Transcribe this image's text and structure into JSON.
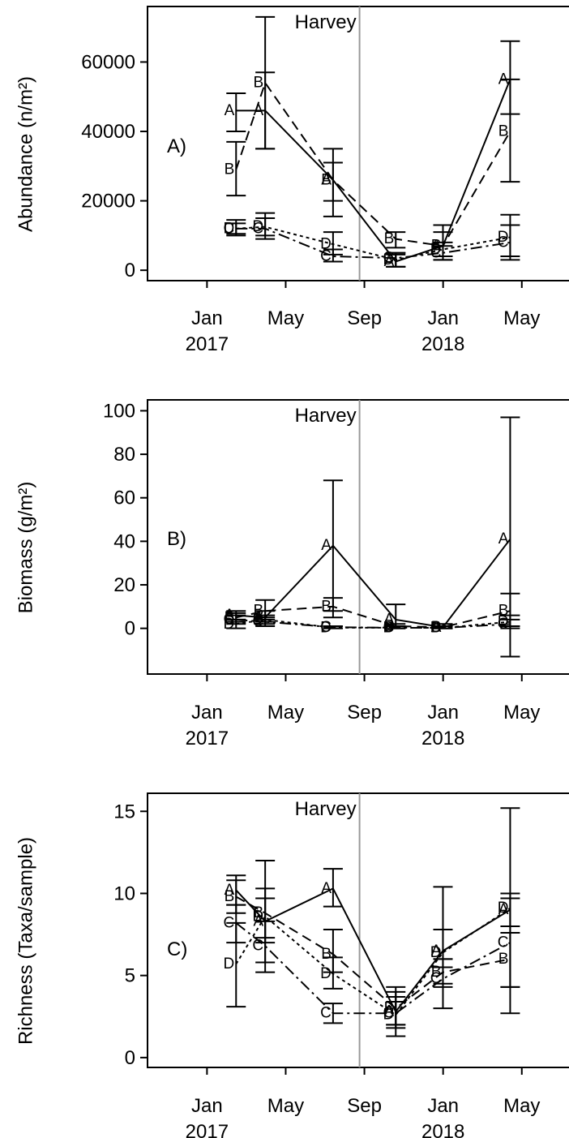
{
  "event_label": "Harvey",
  "x_ticks": [
    {
      "t": 0,
      "line1": "Jan",
      "line2": "2017"
    },
    {
      "t": 4,
      "line1": "May",
      "line2": ""
    },
    {
      "t": 8,
      "line1": "Sep",
      "line2": ""
    },
    {
      "t": 12,
      "line1": "Jan",
      "line2": "2018"
    },
    {
      "t": 16,
      "line1": "May",
      "line2": ""
    }
  ],
  "chart_data": [
    {
      "type": "line",
      "panel_label": "A)",
      "ylabel": "Abundance (n/m²)",
      "xlim": [
        "2016-10-01",
        "2018-07-15"
      ],
      "ylim": [
        -3000,
        76000
      ],
      "yticks": [
        0,
        20000,
        40000,
        60000
      ],
      "event_date": "2017-08-25",
      "series": [
        {
          "name": "A",
          "dash": "",
          "x": [
            "2017-02-15",
            "2017-04-01",
            "2017-07-15",
            "2017-10-20",
            "2018-01-01",
            "2018-04-15"
          ],
          "y": [
            46000,
            46000,
            26000,
            2500,
            7000,
            55000
          ],
          "lo": [
            40000,
            35000,
            20000,
            1000,
            3000,
            45000
          ],
          "hi": [
            51000,
            57000,
            31000,
            4500,
            11000,
            66000
          ]
        },
        {
          "name": "B",
          "dash": "12,7",
          "x": [
            "2017-02-15",
            "2017-04-01",
            "2017-07-15",
            "2017-10-20",
            "2018-01-01",
            "2018-04-15"
          ],
          "y": [
            29000,
            54000,
            26000,
            9000,
            7000,
            40000
          ],
          "lo": [
            21500,
            35000,
            15500,
            6500,
            4000,
            25500
          ],
          "hi": [
            37000,
            73000,
            35000,
            11000,
            13000,
            55000
          ]
        },
        {
          "name": "C",
          "dash": "14,5,3,5",
          "x": [
            "2017-02-15",
            "2017-04-01",
            "2017-07-15",
            "2017-10-20",
            "2018-01-01",
            "2018-04-15"
          ],
          "y": [
            12000,
            12000,
            4000,
            3500,
            5000,
            8000
          ],
          "lo": [
            10000,
            9000,
            2500,
            1000,
            3000,
            3000
          ],
          "hi": [
            14500,
            15000,
            6000,
            5000,
            7000,
            13000
          ]
        },
        {
          "name": "D",
          "dash": "4,4",
          "x": [
            "2017-02-15",
            "2017-04-01",
            "2017-07-15",
            "2017-10-20",
            "2018-01-01",
            "2018-04-15"
          ],
          "y": [
            12000,
            12500,
            7500,
            3000,
            6000,
            9500
          ],
          "lo": [
            10500,
            10000,
            4500,
            1000,
            4000,
            4000
          ],
          "hi": [
            13500,
            16500,
            11000,
            5000,
            8000,
            16000
          ]
        }
      ]
    },
    {
      "type": "line",
      "panel_label": "B)",
      "ylabel": "Biomass (g/m²)",
      "xlim": [
        "2016-10-01",
        "2018-07-15"
      ],
      "ylim": [
        -21,
        105
      ],
      "yticks": [
        0,
        20,
        40,
        60,
        80,
        100
      ],
      "event_date": "2017-08-25",
      "series": [
        {
          "name": "A",
          "dash": "",
          "x": [
            "2017-02-15",
            "2017-04-01",
            "2017-07-15",
            "2017-10-20",
            "2018-01-01",
            "2018-04-15"
          ],
          "y": [
            6,
            5,
            38,
            4,
            0.5,
            41
          ],
          "lo": [
            4,
            3,
            8,
            1,
            0,
            -13
          ],
          "hi": [
            8,
            8,
            68,
            11,
            2,
            97
          ]
        },
        {
          "name": "B",
          "dash": "12,7",
          "x": [
            "2017-02-15",
            "2017-04-01",
            "2017-07-15",
            "2017-10-20",
            "2018-01-01",
            "2018-04-15"
          ],
          "y": [
            5,
            8,
            10,
            1,
            0.5,
            8
          ],
          "lo": [
            3,
            4,
            5,
            0,
            0,
            1
          ],
          "hi": [
            7,
            13,
            14,
            2,
            1,
            16
          ]
        },
        {
          "name": "C",
          "dash": "14,5,3,5",
          "x": [
            "2017-02-15",
            "2017-04-01",
            "2017-07-15",
            "2017-10-20",
            "2018-01-01",
            "2018-04-15"
          ],
          "y": [
            4,
            3,
            0.5,
            0.3,
            0.2,
            2
          ],
          "lo": [
            2,
            1,
            0,
            0,
            0,
            0
          ],
          "hi": [
            6,
            5,
            1,
            1,
            1,
            4
          ]
        },
        {
          "name": "D",
          "dash": "4,4",
          "x": [
            "2017-02-15",
            "2017-04-01",
            "2017-07-15",
            "2017-10-20",
            "2018-01-01",
            "2018-04-15"
          ],
          "y": [
            2,
            4,
            0.3,
            0.3,
            0.2,
            3
          ],
          "lo": [
            0,
            2,
            0,
            0,
            0,
            1
          ],
          "hi": [
            4,
            6,
            1,
            1,
            1,
            6
          ]
        }
      ]
    },
    {
      "type": "line",
      "panel_label": "C)",
      "ylabel": "Richness (Taxa/sample)",
      "xlim": [
        "2016-10-01",
        "2018-07-15"
      ],
      "ylim": [
        -0.6,
        16.1
      ],
      "yticks": [
        0,
        5,
        10,
        15
      ],
      "event_date": "2017-08-25",
      "series": [
        {
          "name": "A",
          "dash": "",
          "x": [
            "2017-02-15",
            "2017-04-01",
            "2017-07-15",
            "2017-10-20",
            "2018-01-01",
            "2018-04-15"
          ],
          "y": [
            10.2,
            8.3,
            10.3,
            2.8,
            6.5,
            9
          ],
          "lo": [
            9.3,
            7.0,
            9.2,
            2.0,
            5.5,
            8.0
          ],
          "hi": [
            11.1,
            9.7,
            11.5,
            3.7,
            10.4,
            10.0
          ]
        },
        {
          "name": "B",
          "dash": "12,7",
          "x": [
            "2017-02-15",
            "2017-04-01",
            "2017-07-15",
            "2017-10-20",
            "2018-01-01",
            "2018-04-15"
          ],
          "y": [
            9.8,
            8.8,
            6.3,
            3.0,
            5.2,
            6
          ],
          "lo": [
            8.8,
            7.3,
            5.2,
            2.0,
            4.3,
            4.3
          ],
          "hi": [
            10.8,
            10.3,
            7.8,
            4.0,
            6.0,
            7.6
          ]
        },
        {
          "name": "C",
          "dash": "14,5,3,5",
          "x": [
            "2017-02-15",
            "2017-04-01",
            "2017-07-15",
            "2017-10-20",
            "2018-01-01",
            "2018-04-15"
          ],
          "y": [
            8.2,
            6.8,
            2.7,
            2.7,
            4.8,
            7
          ],
          "lo": [
            7.0,
            5.2,
            2.1,
            1.3,
            3.0,
            4.3
          ],
          "hi": [
            9.3,
            8.3,
            3.3,
            4.3,
            6.0,
            9.7
          ]
        },
        {
          "name": "D",
          "dash": "4,4",
          "x": [
            "2017-02-15",
            "2017-04-01",
            "2017-07-15",
            "2017-10-20",
            "2018-01-01",
            "2018-04-15"
          ],
          "y": [
            5.7,
            8.6,
            5.1,
            2.6,
            6.4,
            9.1
          ],
          "lo": [
            3.1,
            5.8,
            4.2,
            1.8,
            4.5,
            2.7
          ],
          "hi": [
            8.2,
            12.0,
            6.1,
            3.4,
            7.8,
            15.2
          ]
        }
      ]
    }
  ]
}
